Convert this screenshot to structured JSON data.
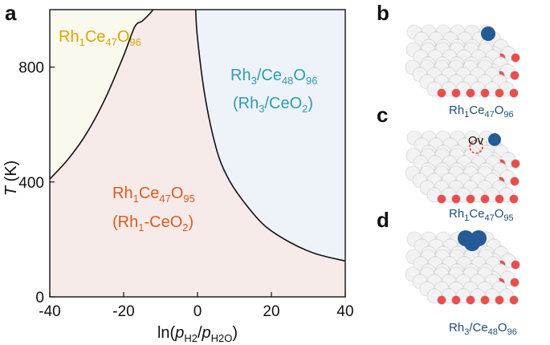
{
  "panels": {
    "a": "a",
    "b": "b",
    "c": "c",
    "d": "d"
  },
  "colors": {
    "region_tl": "#faf9ee",
    "region_main": "#f7ebea",
    "region_right": "#eef3f9",
    "label_tl": "#e0a400",
    "label_main": "#e0591d",
    "label_right": "#2c9db1",
    "boundary": "#111111",
    "ce_atom": "#f2f2f2",
    "o_atom": "#ea4d4d",
    "rh_atom": "#255b95",
    "caption": "#1f4e79"
  },
  "chart_data": {
    "type": "phase-diagram",
    "xlabel": "ln(pH2/pH2O)",
    "ylabel": "T (K)",
    "xlim": [
      -40,
      40
    ],
    "ylim": [
      0,
      1000
    ],
    "x_ticks": [
      "-40",
      "-20",
      "0",
      "20",
      "40"
    ],
    "y_ticks": [
      "0",
      "400",
      "800"
    ],
    "grid": false,
    "boundaries": [
      {
        "between": [
          "Rh1Ce47O96",
          "Rh1Ce47O95"
        ],
        "x": [
          -40,
          -35,
          -30,
          -25,
          -20,
          -17,
          -15,
          -13,
          -12
        ],
        "T": [
          410,
          480,
          570,
          690,
          840,
          940,
          960,
          985,
          1000
        ]
      },
      {
        "between": [
          "Rh1Ce47O95",
          "Rh3/Ce48O96"
        ],
        "x": [
          -0.5,
          0,
          2,
          5,
          8,
          12,
          18,
          25,
          32,
          40
        ],
        "T": [
          1000,
          900,
          700,
          520,
          420,
          340,
          250,
          190,
          150,
          125
        ]
      }
    ],
    "regions": [
      {
        "id": "tl",
        "line1": "Rh",
        "line1_sub": "1",
        "line1_b": "Ce",
        "line1_b_sub": "47",
        "line1_c": "O",
        "line1_c_sub": "96"
      },
      {
        "id": "right",
        "line1": "Rh",
        "line1_sub": "3",
        "line1_b": "/Ce",
        "line1_b_sub": "48",
        "line1_c": "O",
        "line1_c_sub": "96",
        "line2": "(Rh",
        "line2_sub": "3",
        "line2_b": "/CeO",
        "line2_b_sub": "2",
        "line2_c": ")"
      },
      {
        "id": "main",
        "line1": "Rh",
        "line1_sub": "1",
        "line1_b": "Ce",
        "line1_b_sub": "47",
        "line1_c": "O",
        "line1_c_sub": "95",
        "line2": "(Rh",
        "line2_sub": "1",
        "line2_b": "-CeO",
        "line2_b_sub": "2",
        "line2_c": ")"
      }
    ]
  },
  "axis_text": {
    "y_italic": "T",
    "y_rest": " (K)",
    "x_pre": "ln(",
    "x_p1": "p",
    "x_p1_sub": "H2",
    "x_slash": "/",
    "x_p2": "p",
    "x_p2_sub": "H2O",
    "x_post": ")"
  },
  "structures": [
    {
      "id": "b",
      "rh": "single",
      "caption": {
        "a": "Rh",
        "a_sub": "1",
        "b": "Ce",
        "b_sub": "47",
        "c": "O",
        "c_sub": "96"
      }
    },
    {
      "id": "c",
      "rh": "single-vacancy",
      "vacancy_label": "Ov",
      "caption": {
        "a": "Rh",
        "a_sub": "1",
        "b": "Ce",
        "b_sub": "47",
        "c": "O",
        "c_sub": "95"
      }
    },
    {
      "id": "d",
      "rh": "cluster",
      "caption": {
        "a": "Rh",
        "a_sub": "3",
        "b": "/Ce",
        "b_sub": "48",
        "c": "O",
        "c_sub": "96"
      }
    }
  ]
}
